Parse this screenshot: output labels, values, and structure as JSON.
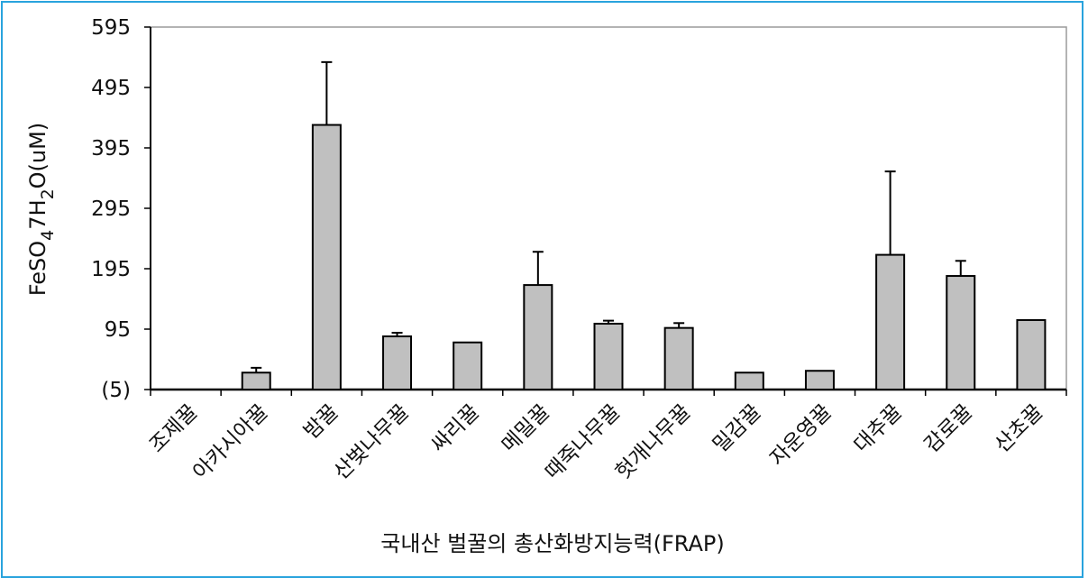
{
  "chart_data": {
    "type": "bar",
    "title": "국내산 벌꿀의 총산화방지능력(FRAP)",
    "ylabel": "FeSO4 7H2O(uM)",
    "ylabel_parts": {
      "base": "FeSO",
      "sub1": "4",
      "mid": "7H",
      "sub2": "2",
      "tail": "O(uM)"
    },
    "ylim": [
      -5,
      595
    ],
    "yticks": [
      {
        "label": "595",
        "value": 595
      },
      {
        "label": "495",
        "value": 495
      },
      {
        "label": "395",
        "value": 395
      },
      {
        "label": "295",
        "value": 295
      },
      {
        "label": "195",
        "value": 195
      },
      {
        "label": "95",
        "value": 95
      },
      {
        "label": "(5)",
        "value": -5
      }
    ],
    "highlight_tick_color": "#c0392b",
    "bar_color": "#c0c0c0",
    "frame_color": "#29a3dd",
    "grid": false,
    "categories": [
      "조제꿀",
      "아카시아꿀",
      "밤꿀",
      "산벚나무꿀",
      "싸리꿀",
      "메밀꿀",
      "때죽나무꿀",
      "헛개나무꿀",
      "밀감꿀",
      "자운영꿀",
      "대추꿀",
      "감로꿀",
      "산초꿀"
    ],
    "values": [
      -5,
      23,
      433,
      83,
      73,
      168,
      104,
      97,
      23,
      26,
      218,
      183,
      110
    ],
    "errors": [
      0,
      8,
      104,
      6,
      0,
      55,
      5,
      8,
      0,
      0,
      138,
      25,
      0
    ]
  }
}
